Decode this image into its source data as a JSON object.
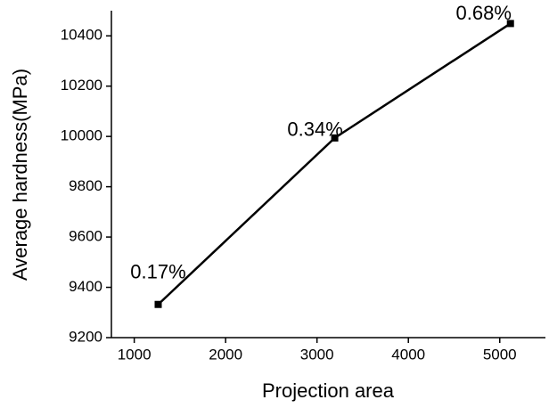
{
  "chart_data": {
    "type": "line",
    "x_label": "Projection area",
    "y_label": "Average hardness(MPa)",
    "series": [
      {
        "color": "#000000",
        "x": [
          1262,
          3194,
          5117
        ],
        "values": [
          9332,
          9994,
          10449
        ],
        "point_labels": [
          "0.17%",
          "0.34%",
          "0.68%"
        ]
      }
    ],
    "xlim": [
      750,
      5500
    ],
    "xticks": [
      1000,
      2000,
      3000,
      4000,
      5000
    ],
    "ylim": [
      9200,
      10500
    ],
    "yticks": [
      9200,
      9400,
      9600,
      9800,
      10000,
      10200,
      10400
    ],
    "grid": false
  }
}
